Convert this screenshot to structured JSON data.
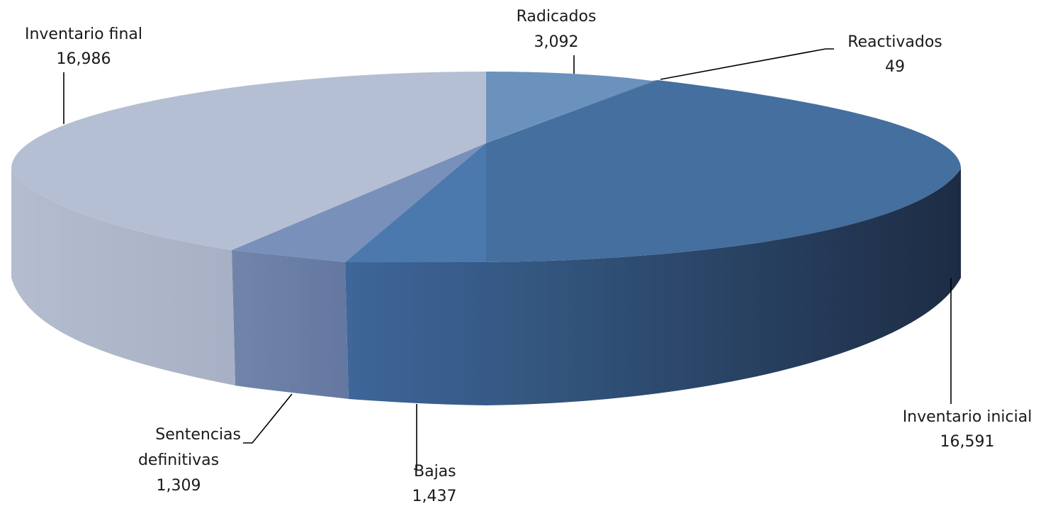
{
  "chart_data": {
    "type": "pie",
    "title": "",
    "slices": [
      {
        "label": "Radicados",
        "value": "3,092",
        "color": "#6b92bd"
      },
      {
        "label": "Reactivados",
        "value": "49",
        "color": "#5b80b0"
      },
      {
        "label": "Inventario inicial",
        "value": "16,591",
        "color": "#446f9f"
      },
      {
        "label": "Bajas",
        "value": "1,437",
        "color": "#4b79ae"
      },
      {
        "label": "Sentencias definitivas",
        "value": "1,309",
        "color": "#7890ba"
      },
      {
        "label": "Inventario final",
        "value": "16,986",
        "color": "#b5bfd3"
      }
    ]
  }
}
